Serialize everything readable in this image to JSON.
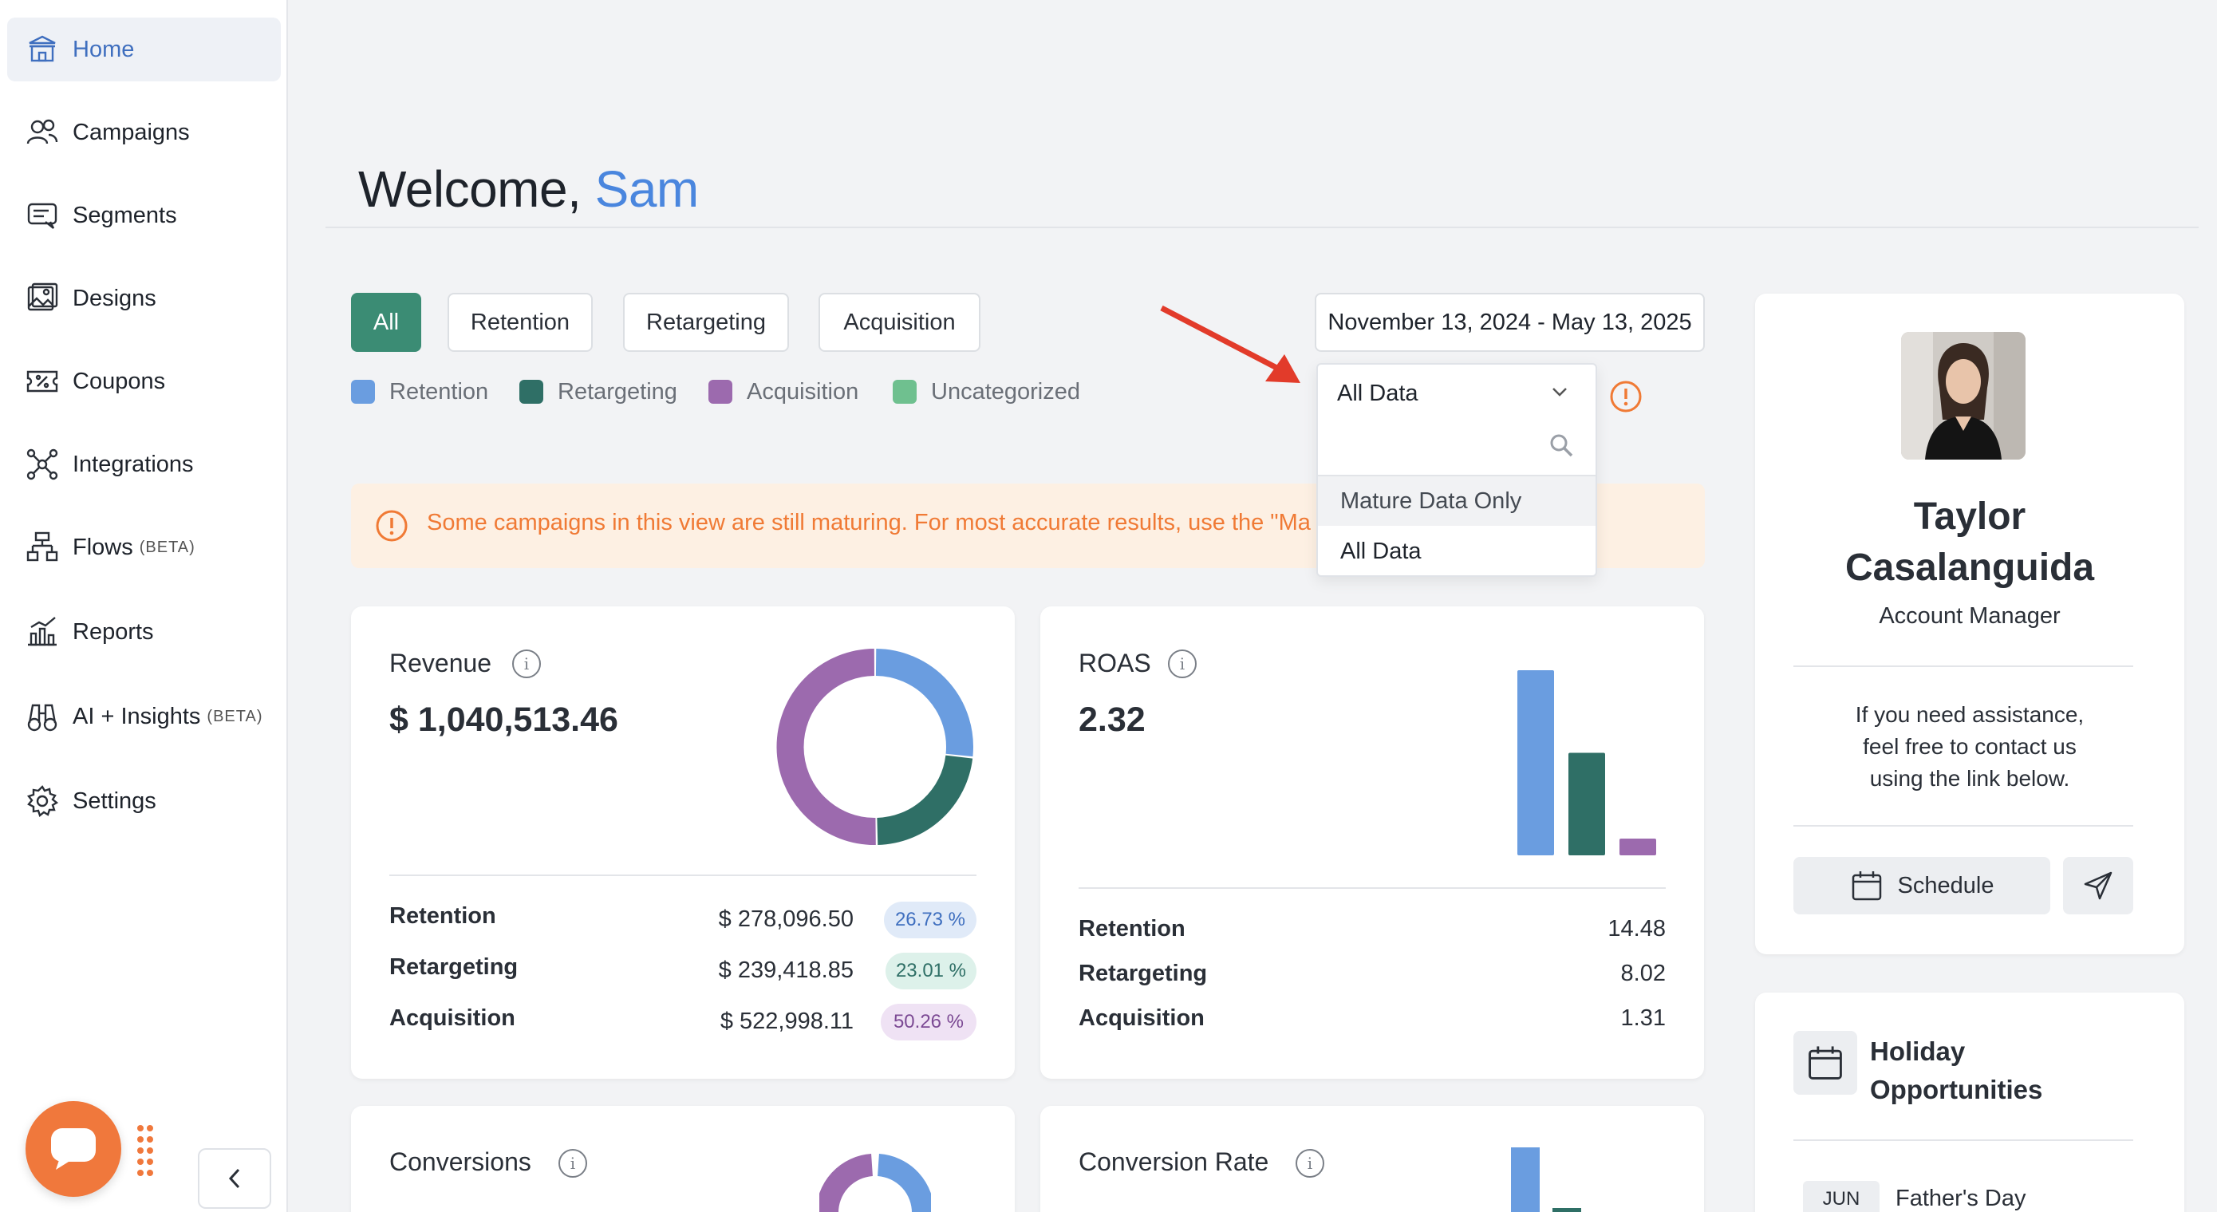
{
  "sidebar": {
    "items": [
      {
        "label": "Home",
        "icon": "home-icon"
      },
      {
        "label": "Campaigns",
        "icon": "users-icon"
      },
      {
        "label": "Segments",
        "icon": "segments-icon"
      },
      {
        "label": "Designs",
        "icon": "image-icon"
      },
      {
        "label": "Coupons",
        "icon": "coupon-icon"
      },
      {
        "label": "Integrations",
        "icon": "network-icon"
      },
      {
        "label": "Flows",
        "badge": "(BETA)",
        "icon": "flow-icon"
      },
      {
        "label": "Reports",
        "icon": "chart-icon"
      },
      {
        "label": "AI + Insights",
        "badge": "(BETA)",
        "icon": "binoculars-icon"
      },
      {
        "label": "Settings",
        "icon": "gear-icon"
      }
    ],
    "active": "Home"
  },
  "header": {
    "greeting": "Welcome,",
    "user": "Sam"
  },
  "filters": {
    "tabs": [
      "All",
      "Retention",
      "Retargeting",
      "Acquisition"
    ],
    "active_tab": "All",
    "legend": [
      {
        "label": "Retention",
        "color": "#6a9de0"
      },
      {
        "label": "Retargeting",
        "color": "#2f6f66"
      },
      {
        "label": "Acquisition",
        "color": "#9c6aae"
      },
      {
        "label": "Uncategorized",
        "color": "#6fc08f"
      }
    ],
    "date_range": "November 13, 2024 - May 13, 2025",
    "data_select": {
      "value": "All Data",
      "options": [
        "Mature Data Only",
        "All Data"
      ]
    }
  },
  "alert": {
    "text": "Some campaigns in this view are still maturing. For most accurate results, use the \"Ma"
  },
  "colors": {
    "retention": "#6a9de0",
    "retargeting": "#2f6f66",
    "acquisition": "#9c6aae",
    "accent": "#3b8c74"
  },
  "revenue": {
    "title": "Revenue",
    "total": "$ 1,040,513.46",
    "rows": [
      {
        "label": "Retention",
        "value": "$ 278,096.50",
        "pct": "26.73 %"
      },
      {
        "label": "Retargeting",
        "value": "$ 239,418.85",
        "pct": "23.01 %"
      },
      {
        "label": "Acquisition",
        "value": "$ 522,998.11",
        "pct": "50.26 %"
      }
    ]
  },
  "roas": {
    "title": "ROAS",
    "total": "2.32",
    "rows": [
      {
        "label": "Retention",
        "value": "14.48"
      },
      {
        "label": "Retargeting",
        "value": "8.02"
      },
      {
        "label": "Acquisition",
        "value": "1.31"
      }
    ]
  },
  "conversions": {
    "title": "Conversions"
  },
  "conversion_rate": {
    "title": "Conversion Rate"
  },
  "chart_data": [
    {
      "type": "pie",
      "title": "Revenue",
      "categories": [
        "Retention",
        "Retargeting",
        "Acquisition"
      ],
      "values": [
        26.73,
        23.01,
        50.26
      ]
    },
    {
      "type": "bar",
      "title": "ROAS",
      "categories": [
        "Retention",
        "Retargeting",
        "Acquisition"
      ],
      "values": [
        14.48,
        8.02,
        1.31
      ]
    }
  ],
  "account_manager": {
    "name_line1": "Taylor",
    "name_line2": "Casalanguida",
    "role": "Account Manager",
    "help_line1": "If you need assistance,",
    "help_line2": "feel free to contact us",
    "help_line3": "using the link below.",
    "schedule_label": "Schedule"
  },
  "holiday": {
    "title_line1": "Holiday",
    "title_line2": "Opportunities",
    "items": [
      {
        "month": "JUN",
        "name": "Father's Day"
      }
    ]
  }
}
